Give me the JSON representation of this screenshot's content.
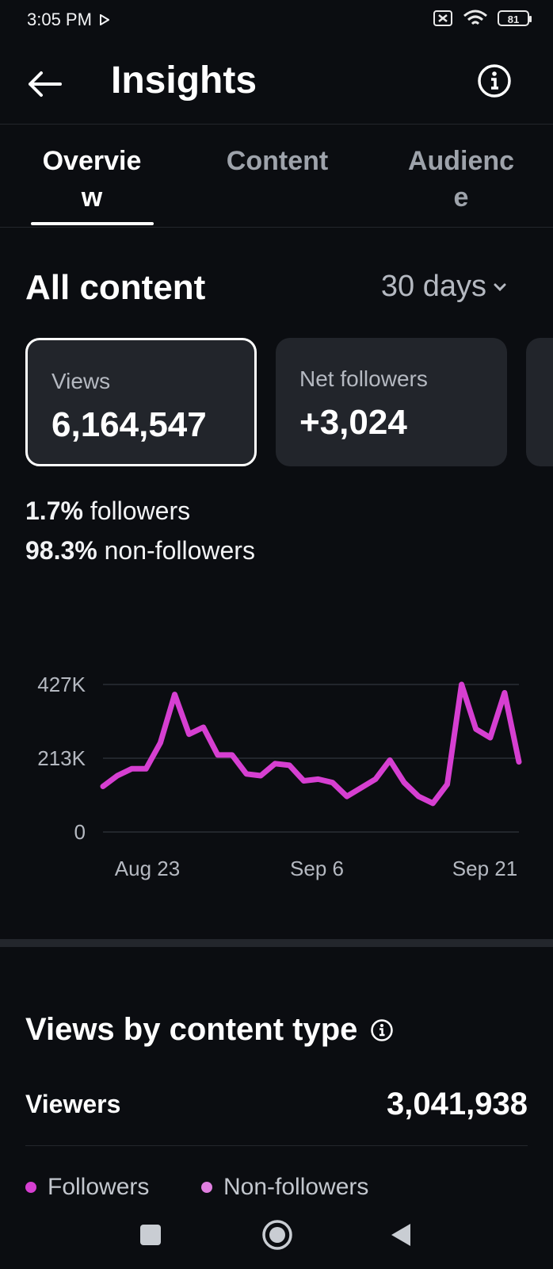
{
  "status_bar": {
    "time": "3:05 PM",
    "battery": "81"
  },
  "header": {
    "title": "Insights"
  },
  "tabs": [
    {
      "label": "Overvie\nw",
      "active": true
    },
    {
      "label": "Content",
      "active": false
    },
    {
      "label": "Audienc\ne",
      "active": false
    }
  ],
  "section": {
    "title": "All content",
    "period": "30 days"
  },
  "cards": [
    {
      "label": "Views",
      "value": "6,164,547",
      "selected": true
    },
    {
      "label": "Net followers",
      "value": "+3,024",
      "selected": false
    }
  ],
  "breakdown": [
    {
      "pct": "1.7%",
      "label": "followers"
    },
    {
      "pct": "98.3%",
      "label": "non-followers"
    }
  ],
  "chart_data": {
    "type": "line",
    "y_ticks": [
      "427K",
      "213K",
      "0"
    ],
    "x_ticks": [
      "Aug 23",
      "Sep 6",
      "Sep 21"
    ],
    "ylim": [
      0,
      427000
    ],
    "series": [
      {
        "color": "#d63fd1",
        "values": [
          132000,
          163000,
          183000,
          183000,
          258000,
          398000,
          283000,
          303000,
          223000,
          223000,
          168000,
          163000,
          198000,
          193000,
          148000,
          153000,
          143000,
          103000,
          128000,
          153000,
          208000,
          143000,
          103000,
          83000,
          138000,
          427000,
          298000,
          273000,
          403000,
          203000
        ]
      }
    ]
  },
  "content_type": {
    "title": "Views by content type",
    "viewers_label": "Viewers",
    "viewers_value": "3,041,938",
    "legend": [
      {
        "label": "Followers",
        "color": "#d63fd1"
      },
      {
        "label": "Non-followers",
        "color": "#e07fe0"
      }
    ]
  }
}
